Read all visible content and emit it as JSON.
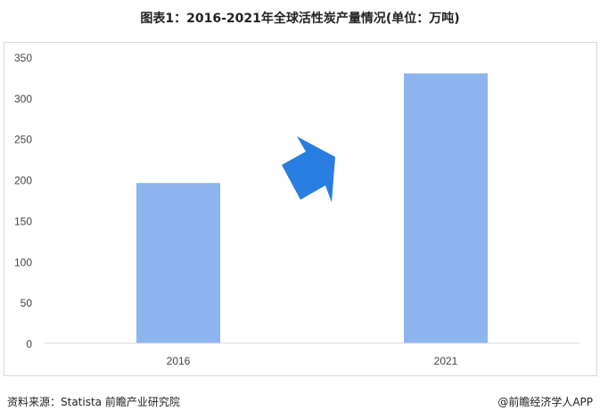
{
  "title": "图表1：2016-2021年全球活性炭产量情况(单位：万吨)",
  "footer": {
    "source": "资料来源：Statista 前瞻产业研究院",
    "brand": "@前瞻经济学人APP"
  },
  "colors": {
    "bar": "#8db4ee",
    "arrow": "#2a7de1"
  },
  "chart_data": {
    "type": "bar",
    "categories": [
      "2016",
      "2021"
    ],
    "values": [
      196,
      330
    ],
    "ylim": [
      0,
      350
    ],
    "yticks": [
      0,
      50,
      100,
      150,
      200,
      250,
      300,
      350
    ],
    "grid": false,
    "annotations": [
      "upward-arrow"
    ]
  }
}
